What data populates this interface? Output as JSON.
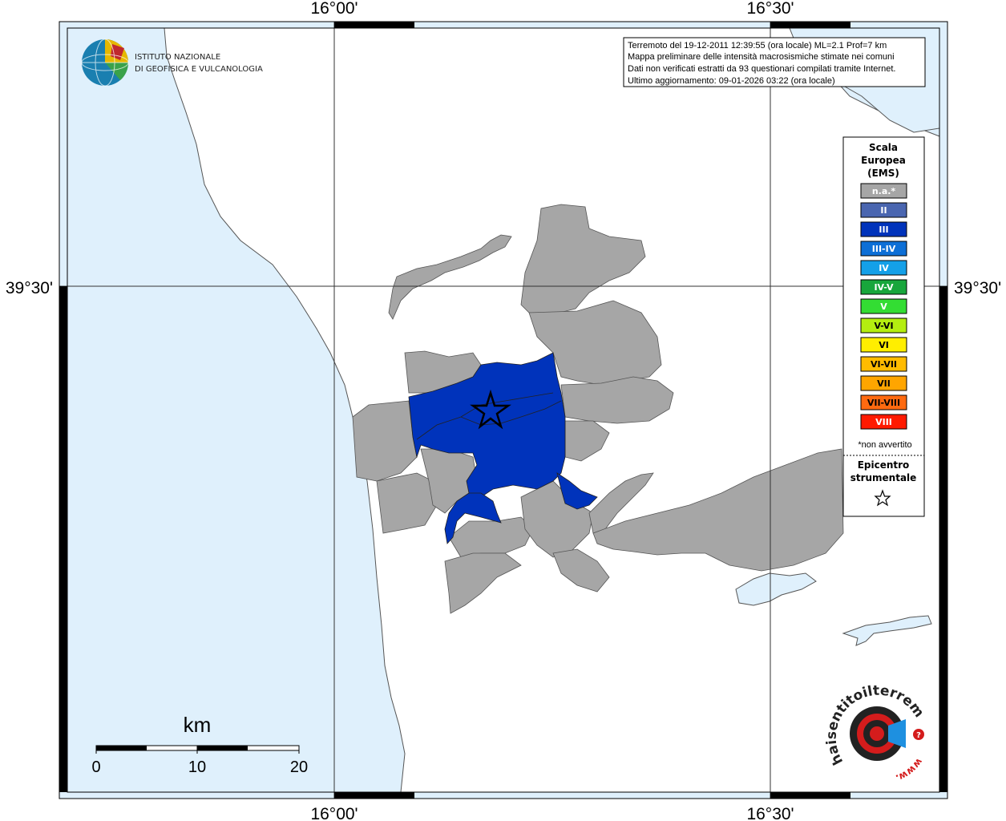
{
  "coords": {
    "top_left": "16°00'",
    "top_right": "16°30'",
    "bottom_left": "16°00'",
    "bottom_right": "16°30'",
    "left_lat": "39°30'",
    "right_lat": "39°30'"
  },
  "institute": {
    "line1": "ISTITUTO NAZIONALE",
    "line2": "DI GEOFISICA E VULCANOLOGIA"
  },
  "info": {
    "line1": "Terremoto del 19-12-2011 12:39:55 (ora locale) ML=2.1 Prof=7 km",
    "line2": "Mappa preliminare delle intensità macrosismiche stimate nei comuni",
    "line3": "Dati non verificati estratti da 93 questionari compilati tramite Internet.",
    "line4": "Ultimo aggiornamento: 09-01-2026 03:22 (ora locale)"
  },
  "legend": {
    "title1": "Scala",
    "title2": "Europea",
    "title3": "(EMS)",
    "items": [
      {
        "label": "n.a.*",
        "color": "#a6a6a6"
      },
      {
        "label": "II",
        "color": "#4a66b0"
      },
      {
        "label": "III",
        "color": "#0033bb"
      },
      {
        "label": "III-IV",
        "color": "#0d6fd6"
      },
      {
        "label": "IV",
        "color": "#14a0e8"
      },
      {
        "label": "IV-V",
        "color": "#18a63c"
      },
      {
        "label": "V",
        "color": "#33dd33"
      },
      {
        "label": "V-VI",
        "color": "#b4ee10"
      },
      {
        "label": "VI",
        "color": "#ffee00"
      },
      {
        "label": "VI-VII",
        "color": "#ffbb00"
      },
      {
        "label": "VII",
        "color": "#ffa500"
      },
      {
        "label": "VII-VIII",
        "color": "#ff6a10"
      },
      {
        "label": "VIII",
        "color": "#ff1a00"
      }
    ],
    "note": "*non avvertito",
    "epicenter1": "Epicentro",
    "epicenter2": "strumentale"
  },
  "scalebar": {
    "unit": "km",
    "tick0": "0",
    "tick1": "10",
    "tick2": "20"
  },
  "colors": {
    "sea": "#dff0fc",
    "land": "#ffffff",
    "na": "#a6a6a6",
    "iii": "#0033bb"
  },
  "hsit_logo": {
    "text": "haisentitoilterremoto.it",
    "www": "www."
  }
}
